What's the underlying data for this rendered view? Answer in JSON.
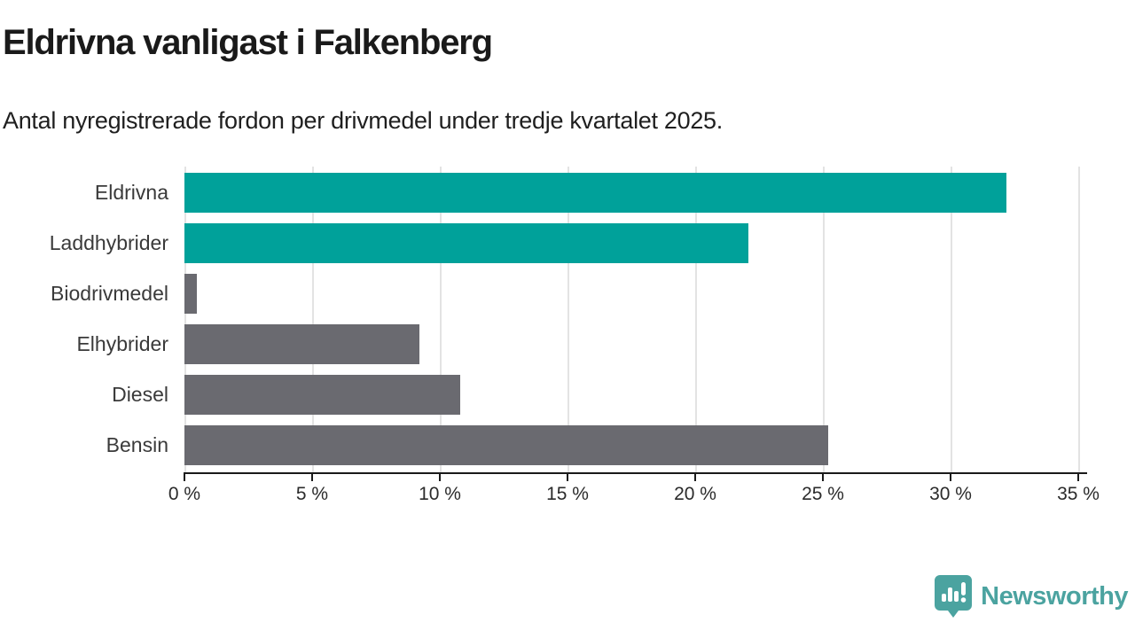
{
  "header": {
    "title": "Eldrivna vanligast i Falkenberg",
    "subtitle": "Antal nyregistrerade fordon per drivmedel under tredje kvartalet 2025."
  },
  "chart_data": {
    "type": "bar",
    "orientation": "horizontal",
    "title": "Eldrivna vanligast i Falkenberg",
    "subtitle": "Antal nyregistrerade fordon per drivmedel under tredje kvartalet 2025.",
    "categories": [
      "Eldrivna",
      "Laddhybrider",
      "Biodrivmedel",
      "Elhybrider",
      "Diesel",
      "Bensin"
    ],
    "values": [
      32.2,
      22.1,
      0.5,
      9.2,
      10.8,
      25.2
    ],
    "unit": "%",
    "xlim": [
      0,
      35
    ],
    "x_ticks": [
      0,
      5,
      10,
      15,
      20,
      25,
      30,
      35
    ],
    "x_tick_labels": [
      "0 %",
      "5 %",
      "10 %",
      "15 %",
      "20 %",
      "25 %",
      "30 %",
      "35 %"
    ],
    "bar_colors": [
      "#00a19a",
      "#00a19a",
      "#6a6a70",
      "#6a6a70",
      "#6a6a70",
      "#6a6a70"
    ],
    "highlight_color": "#00a19a",
    "default_color": "#6a6a70",
    "grid": true,
    "legend": "none"
  },
  "footer": {
    "brand": "Newsworthy",
    "brand_color": "#4ba3a0",
    "logo_icon": "newsworthy-bar-chart-speech-bubble-icon"
  }
}
